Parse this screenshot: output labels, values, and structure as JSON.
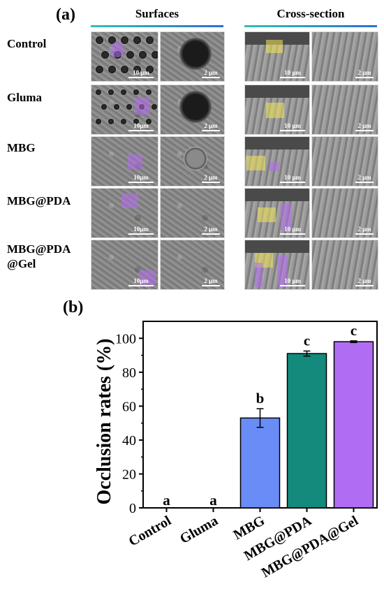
{
  "panel_a": {
    "label": "(a)",
    "col_headers": [
      "Surfaces",
      "Cross-section"
    ],
    "rows": [
      {
        "label": "Control",
        "scales": [
          "10 μm",
          "2 μm",
          "10 μm",
          "2 μm"
        ]
      },
      {
        "label": "Gluma",
        "scales": [
          "10μm",
          "2 μm",
          "10 μm",
          "2 μm"
        ]
      },
      {
        "label": "MBG",
        "scales": [
          "10μm",
          "2 μm",
          "10 μm",
          "2 μm"
        ]
      },
      {
        "label": "MBG@PDA",
        "scales": [
          "10μm",
          "2 μm",
          "10 μm",
          "2 μm"
        ]
      },
      {
        "label": "MBG@PDA\n@Gel",
        "scales": [
          "10μm",
          "2 μm",
          "10 μm",
          "2 μm"
        ]
      }
    ],
    "highlight_colors": {
      "surface": "#b56cf0",
      "cross_section": "#f2e55a"
    }
  },
  "panel_b": {
    "label": "(b)"
  },
  "chart_data": {
    "type": "bar",
    "categories": [
      "Control",
      "Gluma",
      "MBG",
      "MBG@PDA",
      "MBG@PDA@Gel"
    ],
    "values": [
      0,
      0,
      53,
      91,
      98
    ],
    "errors": [
      0,
      0,
      5.5,
      1.5,
      0.5
    ],
    "significance_letters": [
      "a",
      "a",
      "b",
      "c",
      "c"
    ],
    "colors": [
      "#6a8cf6",
      "#6a8cf6",
      "#6a8cf6",
      "#138a7c",
      "#b06cf2"
    ],
    "xlabel": "",
    "ylabel": "Occlusion rates (%)",
    "ylim": [
      0,
      110
    ],
    "yticks": [
      0,
      20,
      40,
      60,
      80,
      100
    ],
    "grid": false
  }
}
